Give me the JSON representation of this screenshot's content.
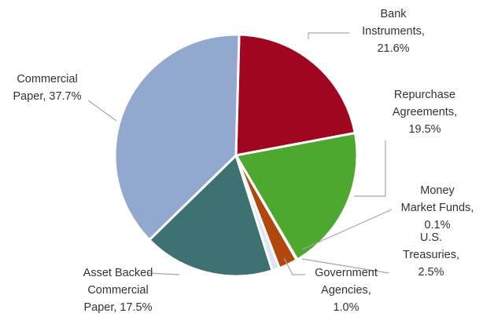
{
  "chart_data": {
    "type": "pie",
    "title": "",
    "slices": [
      {
        "label_lines": [
          "Bank",
          "Instruments,",
          "21.6%"
        ],
        "value": 21.6,
        "color": "#a0061f"
      },
      {
        "label_lines": [
          "Repurchase",
          "Agreements,",
          "19.5%"
        ],
        "value": 19.5,
        "color": "#4ea72e"
      },
      {
        "label_lines": [
          "Money",
          "Market Funds,",
          "0.1%"
        ],
        "value": 0.1,
        "color": "#5b8a87"
      },
      {
        "label_lines": [
          "U.S.",
          "Treasuries,",
          "2.5%"
        ],
        "value": 2.5,
        "color": "#b2470e"
      },
      {
        "label_lines": [
          "Government",
          "Agencies,",
          "1.0%"
        ],
        "value": 1.0,
        "color": "#dce6f0"
      },
      {
        "label_lines": [
          "Asset Backed",
          "Commercial",
          "Paper, 17.5%"
        ],
        "value": 17.5,
        "color": "#3e7272"
      },
      {
        "label_lines": [
          "Commercial",
          "Paper, 37.7%"
        ],
        "value": 37.7,
        "color": "#93a8cf"
      }
    ]
  }
}
